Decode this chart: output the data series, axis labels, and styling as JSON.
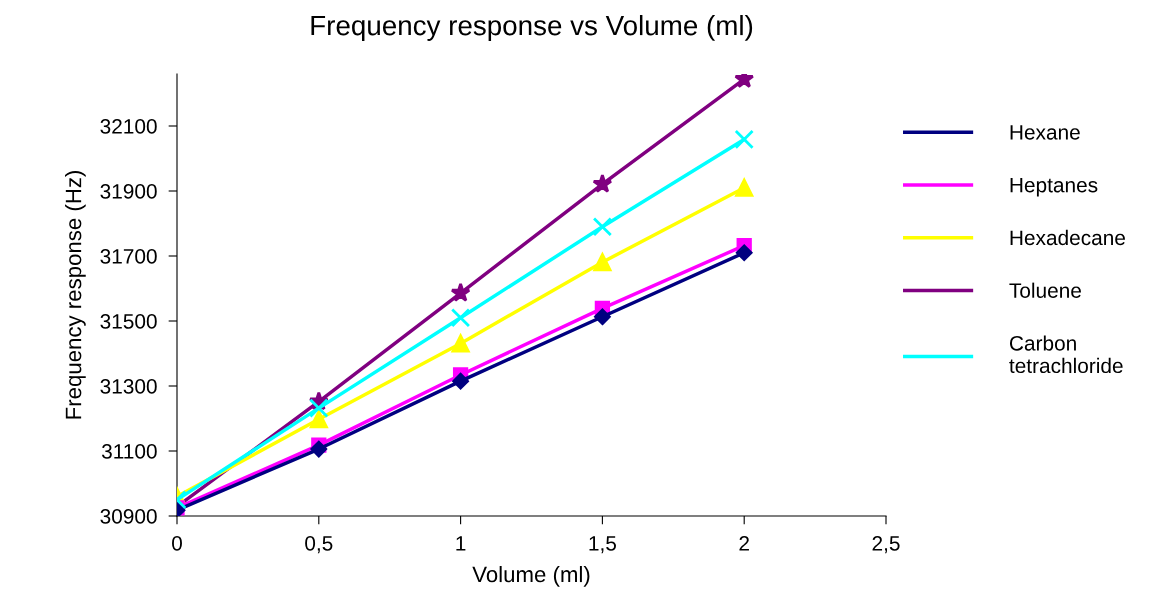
{
  "chart_data": {
    "type": "line",
    "title": "Frequency response vs Volume (ml)",
    "xlabel": "Volume (ml)",
    "ylabel": "Frequency response (Hz)",
    "x": [
      0,
      0.5,
      1,
      1.5,
      2
    ],
    "series": [
      {
        "name": "Hexane",
        "color": "#000080",
        "marker": "diamond",
        "values": [
          30918,
          31106,
          31315,
          31513,
          31710
        ]
      },
      {
        "name": "Heptanes",
        "color": "#ff00ff",
        "marker": "square",
        "values": [
          30925,
          31118,
          31334,
          31539,
          31732
        ]
      },
      {
        "name": "Hexadecane",
        "color": "#ffff00",
        "marker": "triangle",
        "values": [
          30960,
          31198,
          31431,
          31681,
          31910
        ]
      },
      {
        "name": "Toluene",
        "color": "#800080",
        "marker": "star",
        "values": [
          30929,
          31252,
          31586,
          31921,
          32244
        ]
      },
      {
        "name": "Carbon\ntetrachloride",
        "color": "#00ffff",
        "marker": "cross",
        "values": [
          30950,
          31232,
          31510,
          31790,
          32059
        ]
      }
    ],
    "xlim": [
      0,
      2.5
    ],
    "xticks": [
      0,
      {
        "value": 0.5,
        "label": "0,5"
      },
      1,
      {
        "value": 1.5,
        "label": "1,5"
      },
      2,
      {
        "value": 2.5,
        "label": "2,5"
      }
    ],
    "ylim": [
      30900,
      32260
    ],
    "yticks": [
      30900,
      31100,
      31300,
      31500,
      31700,
      31900,
      32100
    ],
    "grid": false,
    "legend": "right",
    "line_style": "solid"
  }
}
